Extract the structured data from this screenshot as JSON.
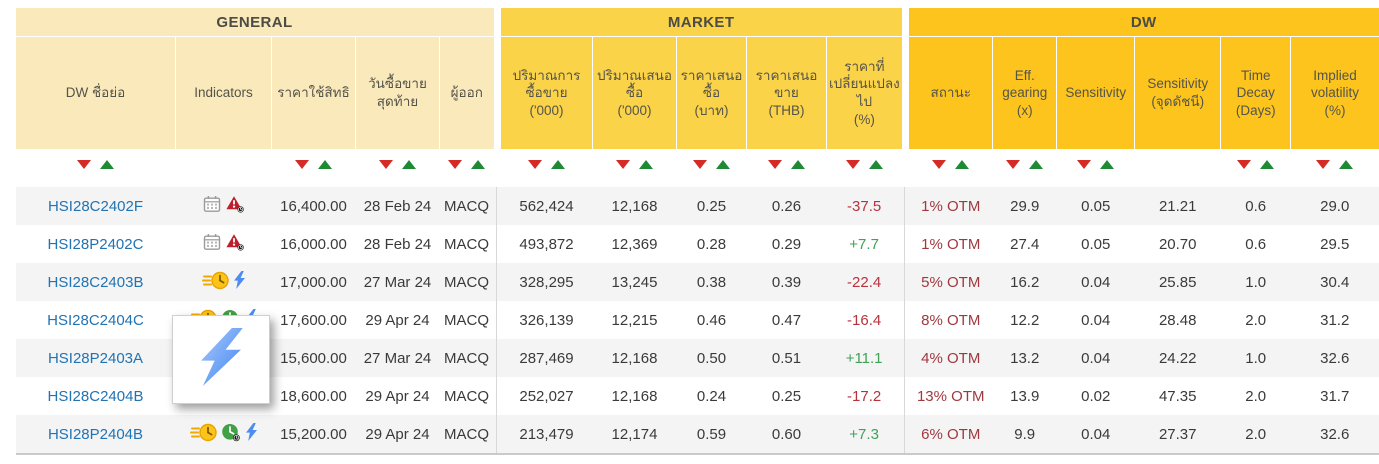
{
  "table": {
    "sections": [
      {
        "id": "general",
        "label": "GENERAL",
        "span": 5
      },
      {
        "id": "market",
        "label": "MARKET",
        "span": 5
      },
      {
        "id": "dw",
        "label": "DW",
        "span": 6
      }
    ],
    "columns": [
      {
        "key": "symbol",
        "section": "general",
        "label": "DW ชื่อย่อ",
        "unit": "",
        "sortable": true,
        "width": 160
      },
      {
        "key": "indicators",
        "section": "general",
        "label": "Indicators",
        "unit": "",
        "sortable": false,
        "width": 96
      },
      {
        "key": "strike",
        "section": "general",
        "label": "ราคาใช้สิทธิ",
        "unit": "",
        "sortable": true,
        "width": 84
      },
      {
        "key": "last_trading_date",
        "section": "general",
        "label": "วันซื้อขาย สุดท้าย",
        "unit": "",
        "sortable": true,
        "width": 84
      },
      {
        "key": "issuer",
        "section": "general",
        "label": "ผู้ออก",
        "unit": "",
        "sortable": true,
        "width": 54
      },
      {
        "key": "volume",
        "section": "market",
        "label": "ปริมาณการ ซื้อขาย",
        "unit": "('000)",
        "sortable": true,
        "width": 92
      },
      {
        "key": "bid_volume",
        "section": "market",
        "label": "ปริมาณเสนอ ซื้อ",
        "unit": "('000)",
        "sortable": true,
        "width": 84
      },
      {
        "key": "bid",
        "section": "market",
        "label": "ราคาเสนอ ซื้อ",
        "unit": "(บาท)",
        "sortable": true,
        "width": 70
      },
      {
        "key": "offer",
        "section": "market",
        "label": "ราคาเสนอ ขาย",
        "unit": "(THB)",
        "sortable": true,
        "width": 80
      },
      {
        "key": "change_pct",
        "section": "market",
        "label": "ราคาที่ เปลี่ยนแปลง ไป",
        "unit": "(%)",
        "sortable": true,
        "width": 74
      },
      {
        "key": "status",
        "section": "dw",
        "label": "สถานะ",
        "unit": "",
        "sortable": true,
        "width": 84
      },
      {
        "key": "eff_gearing",
        "section": "dw",
        "label": "Eff. gearing",
        "unit": "(x)",
        "sortable": true,
        "width": 64
      },
      {
        "key": "sensitivity",
        "section": "dw",
        "label": "Sensitivity",
        "unit": "",
        "sortable": true,
        "width": 78
      },
      {
        "key": "sensitivity_index",
        "section": "dw",
        "label": "Sensitivity",
        "unit": "(จุดดัชนี)",
        "sortable": false,
        "width": 86
      },
      {
        "key": "time_decay",
        "section": "dw",
        "label": "Time Decay",
        "unit": "(Days)",
        "sortable": true,
        "width": 70
      },
      {
        "key": "implied_volatility",
        "section": "dw",
        "label": "Implied volatility",
        "unit": "(%)",
        "sortable": true,
        "width": 88
      }
    ],
    "rows": [
      {
        "symbol": "HSI28C2402F",
        "indicators": [
          "calendar-icon",
          "alert-clock-icon"
        ],
        "strike": "16,400.00",
        "last_trading_date": "28 Feb 24",
        "issuer": "MACQ",
        "volume": "562,424",
        "bid_volume": "12,168",
        "bid": "0.25",
        "offer": "0.26",
        "change_pct": "-37.5",
        "status": "1% OTM",
        "eff_gearing": "29.9",
        "sensitivity": "0.05",
        "sensitivity_index": "21.21",
        "time_decay": "0.6",
        "implied_volatility": "29.0"
      },
      {
        "symbol": "HSI28P2402C",
        "indicators": [
          "calendar-icon",
          "alert-clock-icon"
        ],
        "strike": "16,000.00",
        "last_trading_date": "28 Feb 24",
        "issuer": "MACQ",
        "volume": "493,872",
        "bid_volume": "12,369",
        "bid": "0.28",
        "offer": "0.29",
        "change_pct": "+7.7",
        "status": "1% OTM",
        "eff_gearing": "27.4",
        "sensitivity": "0.05",
        "sensitivity_index": "20.70",
        "time_decay": "0.6",
        "implied_volatility": "29.5"
      },
      {
        "symbol": "HSI28C2403B",
        "indicators": [
          "fast-clock-icon",
          "lightning-icon"
        ],
        "strike": "17,000.00",
        "last_trading_date": "27 Mar 24",
        "issuer": "MACQ",
        "volume": "328,295",
        "bid_volume": "13,245",
        "bid": "0.38",
        "offer": "0.39",
        "change_pct": "-22.4",
        "status": "5% OTM",
        "eff_gearing": "16.2",
        "sensitivity": "0.04",
        "sensitivity_index": "25.85",
        "time_decay": "1.0",
        "implied_volatility": "30.4"
      },
      {
        "symbol": "HSI28C2404C",
        "indicators": [
          "fast-clock-icon",
          "green-clock-icon",
          "lightning-icon"
        ],
        "strike": "17,600.00",
        "last_trading_date": "29 Apr 24",
        "issuer": "MACQ",
        "volume": "326,139",
        "bid_volume": "12,215",
        "bid": "0.46",
        "offer": "0.47",
        "change_pct": "-16.4",
        "status": "8% OTM",
        "eff_gearing": "12.2",
        "sensitivity": "0.04",
        "sensitivity_index": "28.48",
        "time_decay": "2.0",
        "implied_volatility": "31.2"
      },
      {
        "symbol": "HSI28P2403A",
        "indicators": [
          "fast-clock-icon",
          "green-clock-icon",
          "lightning-icon"
        ],
        "strike": "15,600.00",
        "last_trading_date": "27 Mar 24",
        "issuer": "MACQ",
        "volume": "287,469",
        "bid_volume": "12,168",
        "bid": "0.50",
        "offer": "0.51",
        "change_pct": "+11.1",
        "status": "4% OTM",
        "eff_gearing": "13.2",
        "sensitivity": "0.04",
        "sensitivity_index": "24.22",
        "time_decay": "1.0",
        "implied_volatility": "32.6"
      },
      {
        "symbol": "HSI28C2404B",
        "indicators": [
          "fast-clock-icon",
          "green-clock-icon",
          "lightning-icon"
        ],
        "strike": "18,600.00",
        "last_trading_date": "29 Apr 24",
        "issuer": "MACQ",
        "volume": "252,027",
        "bid_volume": "12,168",
        "bid": "0.24",
        "offer": "0.25",
        "change_pct": "-17.2",
        "status": "13% OTM",
        "eff_gearing": "13.9",
        "sensitivity": "0.02",
        "sensitivity_index": "47.35",
        "time_decay": "2.0",
        "implied_volatility": "31.7"
      },
      {
        "symbol": "HSI28P2404B",
        "indicators": [
          "fast-clock-icon",
          "green-clock-icon",
          "lightning-icon"
        ],
        "strike": "15,200.00",
        "last_trading_date": "29 Apr 24",
        "issuer": "MACQ",
        "volume": "213,479",
        "bid_volume": "12,174",
        "bid": "0.59",
        "offer": "0.60",
        "change_pct": "+7.3",
        "status": "6% OTM",
        "eff_gearing": "9.9",
        "sensitivity": "0.04",
        "sensitivity_index": "27.37",
        "time_decay": "2.0",
        "implied_volatility": "32.6"
      }
    ]
  },
  "tooltip": {
    "visible": true,
    "icon": "lightning-icon"
  },
  "colors": {
    "band_general": "#f9e9bb",
    "band_market": "#fbd348",
    "band_dw": "#fcc41d",
    "sort_arrow_down": "#d42b26",
    "sort_arrow_up": "#1f8a34",
    "symbol_link": "#2173b2",
    "status_text": "#a0383f",
    "change_negative": "#b8323e",
    "change_positive": "#3fa257",
    "row_stripe": "#f4f4f5"
  }
}
